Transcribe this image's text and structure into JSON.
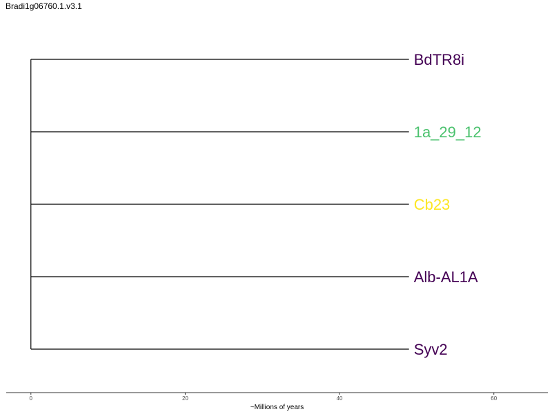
{
  "title": "Bradi1g06760.1.v3.1",
  "tree": {
    "tips": [
      {
        "label": "BdTR8i",
        "branch_length": 49,
        "color": "#440154"
      },
      {
        "label": "1a_29_12",
        "branch_length": 49,
        "color": "#4ac16d"
      },
      {
        "label": "Cb23",
        "branch_length": 49,
        "color": "#fde725"
      },
      {
        "label": "Alb-AL1A",
        "branch_length": 49,
        "color": "#440154"
      },
      {
        "label": "Syv2",
        "branch_length": 49,
        "color": "#440154"
      }
    ]
  },
  "axis": {
    "title": "~Millions of years",
    "ticks": [
      0,
      20,
      40,
      60
    ],
    "range": [
      -3.2,
      67
    ]
  }
}
